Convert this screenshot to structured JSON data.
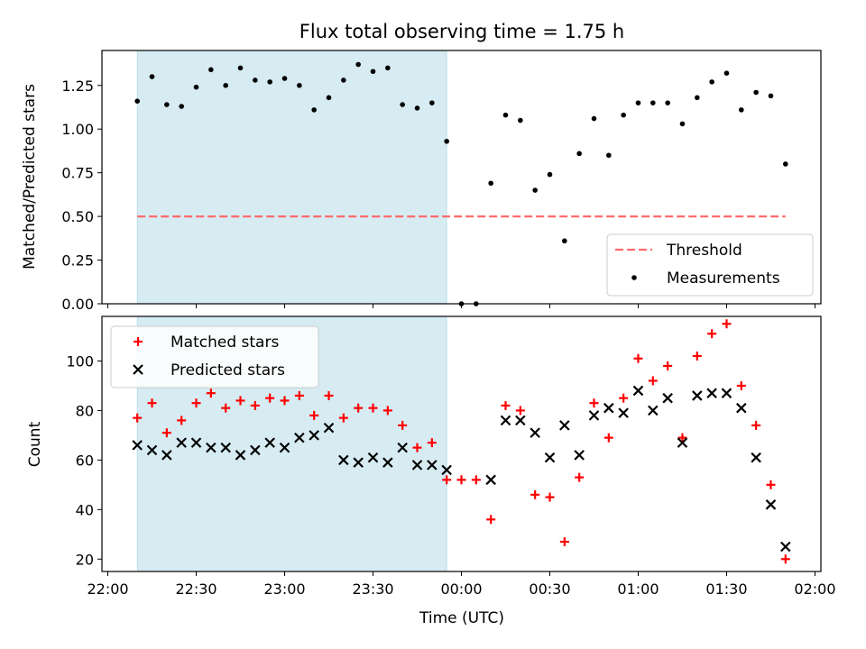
{
  "figure": {
    "title": "Flux total observing time = 1.75 h",
    "xlabel": "Time (UTC)"
  },
  "colors": {
    "highlight": "#add8e6",
    "threshold": "#ff6b6b",
    "measurement": "#000000",
    "matched": "#ff0000",
    "predicted": "#000000"
  },
  "chart_data": [
    {
      "type": "scatter",
      "ylabel": "Matched/Predicted stars",
      "xlim": [
        "21:58",
        "02:02"
      ],
      "ylim": [
        0,
        1.45
      ],
      "yticks": [
        0.0,
        0.25,
        0.5,
        0.75,
        1.0,
        1.25
      ],
      "ytick_labels": [
        "0.00",
        "0.25",
        "0.50",
        "0.75",
        "1.00",
        "1.25"
      ],
      "shaded_interval": [
        "22:10",
        "23:55"
      ],
      "legend": {
        "placement": "lower right",
        "entries": [
          "Threshold",
          "Measurements"
        ]
      },
      "threshold": {
        "name": "Threshold",
        "x": [
          "22:10",
          "01:50"
        ],
        "y": 0.5,
        "style": "dashed"
      },
      "series": [
        {
          "name": "Measurements",
          "x": [
            "22:10",
            "22:15",
            "22:20",
            "22:25",
            "22:30",
            "22:35",
            "22:40",
            "22:45",
            "22:50",
            "22:55",
            "23:00",
            "23:05",
            "23:10",
            "23:15",
            "23:20",
            "23:25",
            "23:30",
            "23:35",
            "23:40",
            "23:45",
            "23:50",
            "23:55",
            "00:00",
            "00:05",
            "00:10",
            "00:15",
            "00:20",
            "00:25",
            "00:30",
            "00:35",
            "00:40",
            "00:45",
            "00:50",
            "00:55",
            "01:00",
            "01:05",
            "01:10",
            "01:15",
            "01:20",
            "01:25",
            "01:30",
            "01:35",
            "01:40",
            "01:45",
            "01:50"
          ],
          "y": [
            1.16,
            1.3,
            1.14,
            1.13,
            1.24,
            1.34,
            1.25,
            1.35,
            1.28,
            1.27,
            1.29,
            1.25,
            1.11,
            1.18,
            1.28,
            1.37,
            1.33,
            1.35,
            1.14,
            1.12,
            1.15,
            0.93,
            0.0,
            0.0,
            0.69,
            1.08,
            1.05,
            0.65,
            0.74,
            0.36,
            0.86,
            1.06,
            0.85,
            1.08,
            1.15,
            1.15,
            1.15,
            1.03,
            1.18,
            1.27,
            1.32,
            1.11,
            1.21,
            1.19,
            0.8
          ]
        }
      ]
    },
    {
      "type": "scatter",
      "ylabel": "Count",
      "xlim": [
        "21:58",
        "02:02"
      ],
      "ylim": [
        15,
        118
      ],
      "yticks": [
        20,
        40,
        60,
        80,
        100
      ],
      "ytick_labels": [
        "20",
        "40",
        "60",
        "80",
        "100"
      ],
      "xticks": [
        "22:00",
        "22:30",
        "23:00",
        "23:30",
        "00:00",
        "00:30",
        "01:00",
        "01:30",
        "02:00"
      ],
      "shaded_interval": [
        "22:10",
        "23:55"
      ],
      "legend": {
        "placement": "upper left",
        "entries": [
          "Matched stars",
          "Predicted stars"
        ]
      },
      "series": [
        {
          "name": "Matched stars",
          "marker": "+",
          "x": [
            "22:10",
            "22:15",
            "22:20",
            "22:25",
            "22:30",
            "22:35",
            "22:40",
            "22:45",
            "22:50",
            "22:55",
            "23:00",
            "23:05",
            "23:10",
            "23:15",
            "23:20",
            "23:25",
            "23:30",
            "23:35",
            "23:40",
            "23:45",
            "23:50",
            "23:55",
            "00:00",
            "00:05",
            "00:10",
            "00:15",
            "00:20",
            "00:25",
            "00:30",
            "00:35",
            "00:40",
            "00:45",
            "00:50",
            "00:55",
            "01:00",
            "01:05",
            "01:10",
            "01:15",
            "01:20",
            "01:25",
            "01:30",
            "01:35",
            "01:40",
            "01:45",
            "01:50"
          ],
          "y": [
            77,
            83,
            71,
            76,
            83,
            87,
            81,
            84,
            82,
            85,
            84,
            86,
            78,
            86,
            77,
            81,
            81,
            80,
            74,
            65,
            67,
            52,
            52,
            52,
            36,
            82,
            80,
            46,
            45,
            27,
            53,
            83,
            69,
            85,
            101,
            92,
            98,
            69,
            102,
            111,
            115,
            90,
            74,
            50,
            20
          ]
        },
        {
          "name": "Predicted stars",
          "marker": "x",
          "x": [
            "22:10",
            "22:15",
            "22:20",
            "22:25",
            "22:30",
            "22:35",
            "22:40",
            "22:45",
            "22:50",
            "22:55",
            "23:00",
            "23:05",
            "23:10",
            "23:15",
            "23:20",
            "23:25",
            "23:30",
            "23:35",
            "23:40",
            "23:45",
            "23:50",
            "23:55",
            "00:10",
            "00:15",
            "00:20",
            "00:25",
            "00:30",
            "00:35",
            "00:40",
            "00:45",
            "00:50",
            "00:55",
            "01:00",
            "01:05",
            "01:10",
            "01:15",
            "01:20",
            "01:25",
            "01:30",
            "01:35",
            "01:40",
            "01:45",
            "01:50"
          ],
          "y": [
            66,
            64,
            62,
            67,
            67,
            65,
            65,
            62,
            64,
            67,
            65,
            69,
            70,
            73,
            60,
            59,
            61,
            59,
            65,
            58,
            58,
            56,
            52,
            76,
            76,
            71,
            61,
            74,
            62,
            78,
            81,
            79,
            88,
            80,
            85,
            67,
            86,
            87,
            87,
            81,
            61,
            42,
            25
          ]
        }
      ]
    }
  ]
}
